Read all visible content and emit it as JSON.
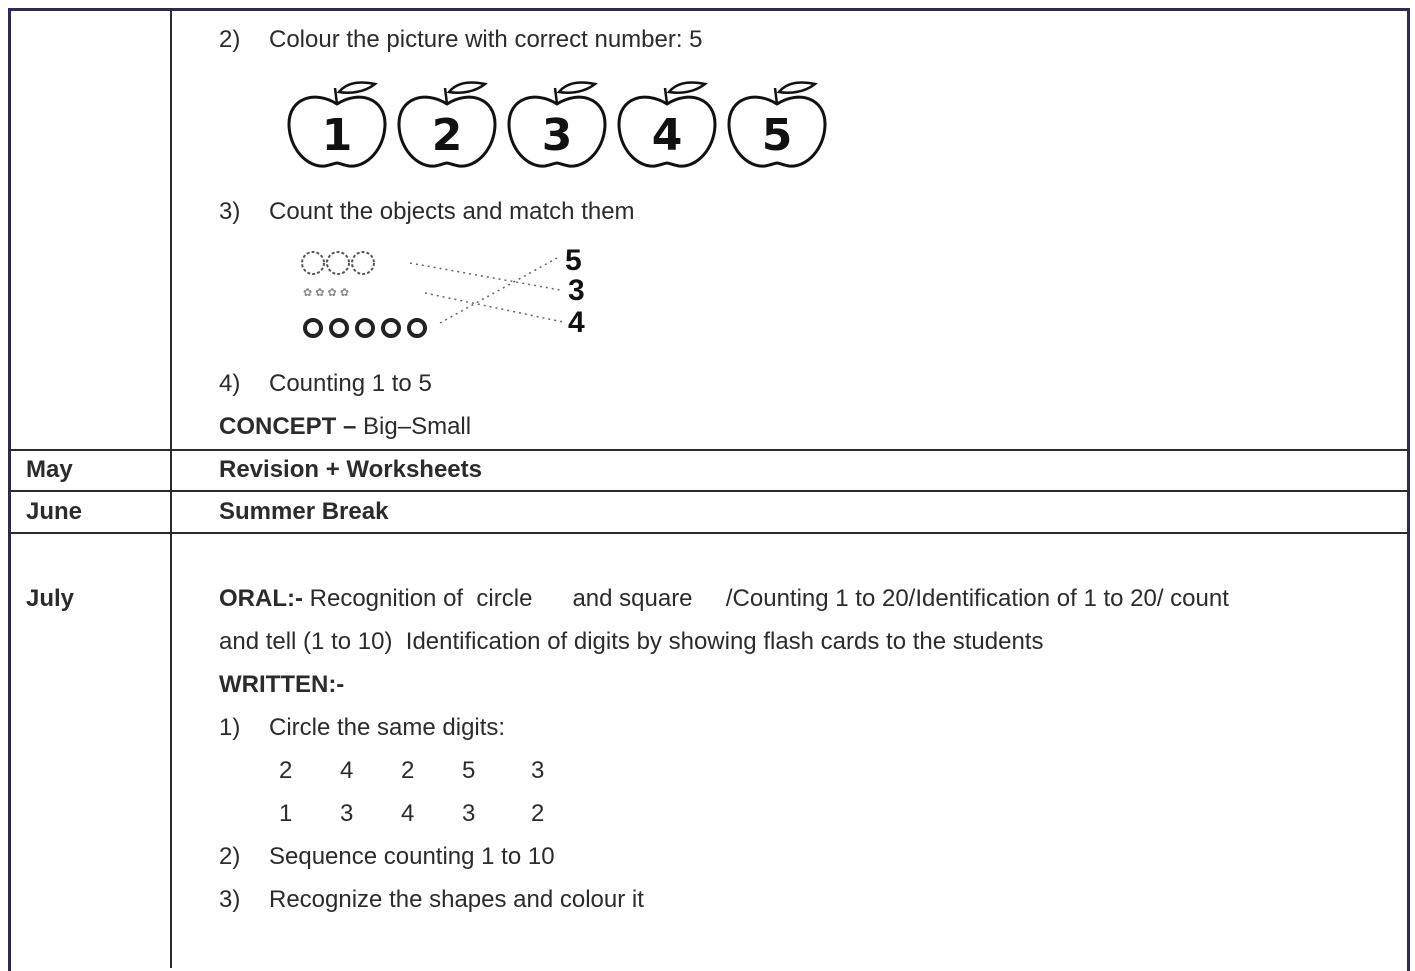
{
  "rows": [
    {
      "month": null,
      "content": {
        "item2": {
          "num": "2)",
          "text": "Colour the picture with correct number: 5",
          "apples": [
            1,
            2,
            3,
            4,
            5
          ]
        },
        "item3": {
          "num": "3)",
          "text": "Count the objects and match them",
          "match_numbers": [
            5,
            3,
            4
          ]
        },
        "item4": {
          "num": "4)",
          "text": "Counting 1 to 5"
        },
        "concept": {
          "label": "CONCEPT –",
          "text": "Big–Small"
        }
      }
    },
    {
      "month": "May",
      "content": {
        "text": "Revision + Worksheets"
      }
    },
    {
      "month": "June",
      "content": {
        "text": "Summer Break"
      }
    },
    {
      "month": "July",
      "content": {
        "oral": {
          "label": "ORAL:-",
          "lines": [
            "Recognition of  circle      and square     /Counting 1 to 20/Identification of 1 to 20/ count",
            "and tell (1 to 10)  Identification of digits by showing flash cards to the students"
          ]
        },
        "written": {
          "label": "WRITTEN:-",
          "item1": {
            "num": "1)",
            "text": "Circle the same digits:",
            "digits": [
              [
                2,
                4,
                2,
                5,
                3
              ],
              [
                1,
                3,
                4,
                3,
                2
              ]
            ]
          },
          "item2": {
            "num": "2)",
            "text": "Sequence counting 1 to 10"
          },
          "item3": {
            "num": "3)",
            "text": "Recognize the shapes and colour it"
          }
        }
      }
    }
  ]
}
